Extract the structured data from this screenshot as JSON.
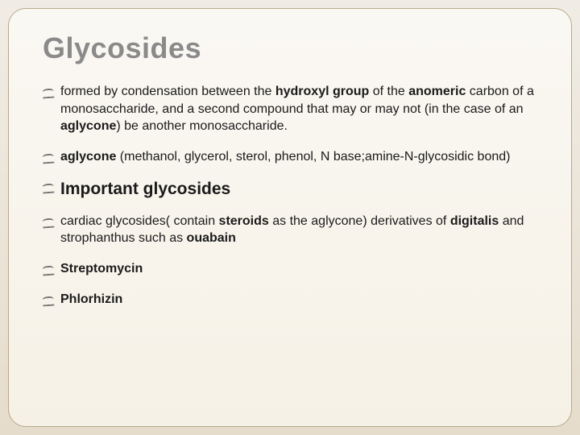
{
  "colors": {
    "outer_bg_top": "#f0ece5",
    "outer_bg_bottom": "#e5dccc",
    "frame_bg_top": "#faf8f3",
    "frame_bg_bottom": "#f6f1e6",
    "frame_border": "#b8a88a",
    "title_color": "#8a8a8a",
    "text_color": "#1a1a1a"
  },
  "typography": {
    "title_fontsize": 36,
    "body_fontsize": 16,
    "subheading_fontsize": 21,
    "font_family": "Verdana"
  },
  "title": "Glycosides",
  "bullets": {
    "b1": {
      "pre": "formed by condensation between the ",
      "bold1": "hydroxyl group",
      "mid1": " of the ",
      "bold2": "anomeric",
      "mid2": " carbon of a monosaccharide, and a second compound that may or may not (in the case of an ",
      "bold3": "aglycone",
      "post": ") be another monosaccharide."
    },
    "b2": {
      "bold1": "aglycone",
      "rest": " (methanol, glycerol,  sterol, phenol, N base;amine-N-glycosidic bond)"
    },
    "b3": {
      "bold1": "Important",
      "rest": "  glycosides"
    },
    "b4": {
      "pre": "cardiac glycosides( contain ",
      "bold1": "steroids",
      "mid1": " as the aglycone) derivatives of ",
      "bold2": "digitalis",
      "mid2": " and strophanthus such as ",
      "bold3": "ouabain"
    },
    "b5": {
      "bold1": "Streptomycin"
    },
    "b6": {
      "bold1": "Phlorhizin"
    }
  }
}
